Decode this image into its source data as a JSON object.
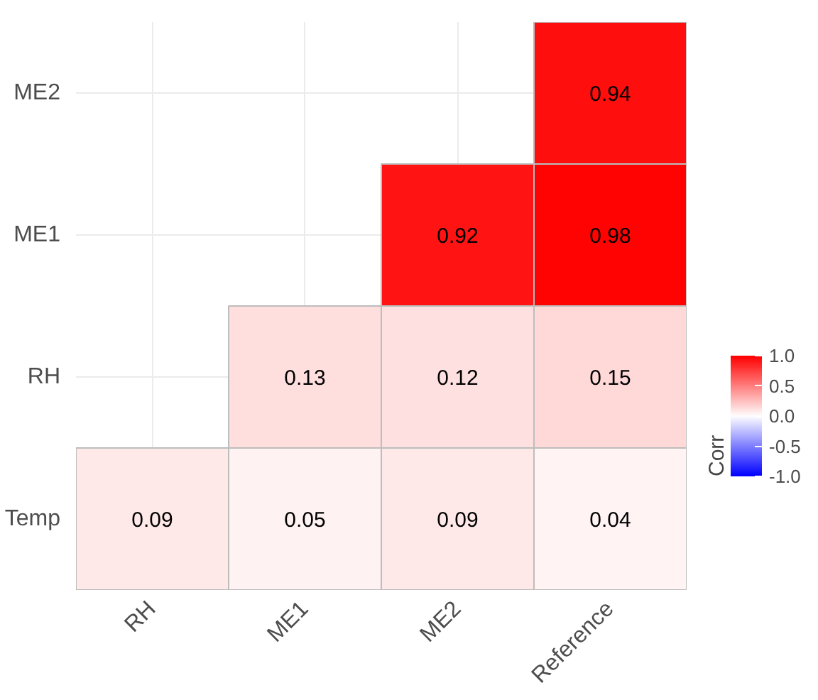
{
  "chart_data": {
    "type": "heatmap",
    "categories": [
      "RH",
      "ME1",
      "ME2",
      "Reference"
    ],
    "y_categories": [
      "ME2",
      "ME1",
      "RH",
      "Temp"
    ],
    "cells": [
      [
        null,
        null,
        null,
        0.94
      ],
      [
        null,
        null,
        0.92,
        0.98
      ],
      [
        null,
        0.13,
        0.12,
        0.15
      ],
      [
        0.09,
        0.05,
        0.09,
        0.04
      ]
    ],
    "clabel": "Corr",
    "clim": [
      -1,
      1
    ],
    "cticks": [
      {
        "value": -1,
        "label": "-1.0"
      },
      {
        "value": -0.5,
        "label": "-0.5"
      },
      {
        "value": 0,
        "label": "0.0"
      },
      {
        "value": 0.5,
        "label": "0.5"
      },
      {
        "value": 1,
        "label": "1.0"
      }
    ],
    "data_labels": true,
    "grid": true
  }
}
